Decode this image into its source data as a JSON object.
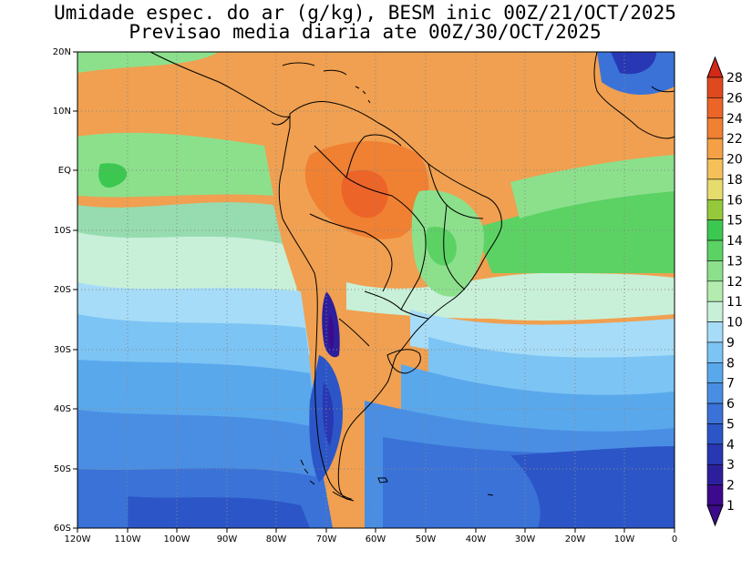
{
  "title": {
    "line1": "Umidade espec. do ar (g/kg), BESM inic 00Z/21/OCT/2025",
    "line2": "Previsao media diaria ate 00Z/30/OCT/2025"
  },
  "map": {
    "variable": "Umidade espec. do ar (g/kg)",
    "lon_range": [
      -120,
      0
    ],
    "lat_range": [
      -60,
      20
    ],
    "grid": true,
    "lat_labels": [
      "20N",
      "10N",
      "EQ",
      "10S",
      "20S",
      "30S",
      "40S",
      "50S",
      "60S"
    ],
    "lon_labels": [
      "120W",
      "110W",
      "100W",
      "90W",
      "80W",
      "70W",
      "60W",
      "50W",
      "40W",
      "30W",
      "20W",
      "10W",
      "0"
    ]
  },
  "colorbar": {
    "levels": [
      "1",
      "2",
      "3",
      "4",
      "5",
      "6",
      "7",
      "8",
      "9",
      "10",
      "11",
      "12",
      "13",
      "14",
      "15",
      "16",
      "18",
      "20",
      "22",
      "24",
      "26",
      "28"
    ],
    "colors": [
      "#3c0a8c",
      "#2d1e9c",
      "#2838b4",
      "#2c56c8",
      "#3a72d8",
      "#4a8ee4",
      "#5aa8ec",
      "#7cc4f4",
      "#a6dcf8",
      "#c8f0d8",
      "#b4ecb0",
      "#8ce08c",
      "#5cd264",
      "#3cc850",
      "#96c83c",
      "#e6dc6e",
      "#f5c05a",
      "#f5a046",
      "#f08032",
      "#ec6428",
      "#e04820",
      "#d42818"
    ]
  }
}
